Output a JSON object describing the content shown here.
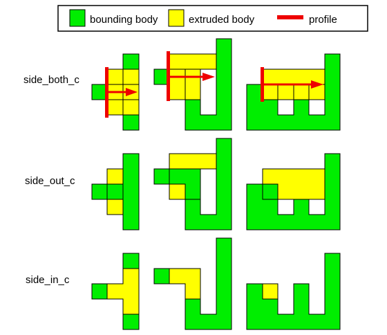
{
  "legend": {
    "bounding_label": "bounding body",
    "extruded_label": "extruded body",
    "profile_label": "profile"
  },
  "rows": [
    {
      "label": "side_both_c"
    },
    {
      "label": "side_out_c"
    },
    {
      "label": "side_in_c"
    }
  ],
  "colors": {
    "bounding": "#00ee00",
    "extruded": "#ffff00",
    "profile": "#ee0000",
    "outline": "#000000"
  }
}
